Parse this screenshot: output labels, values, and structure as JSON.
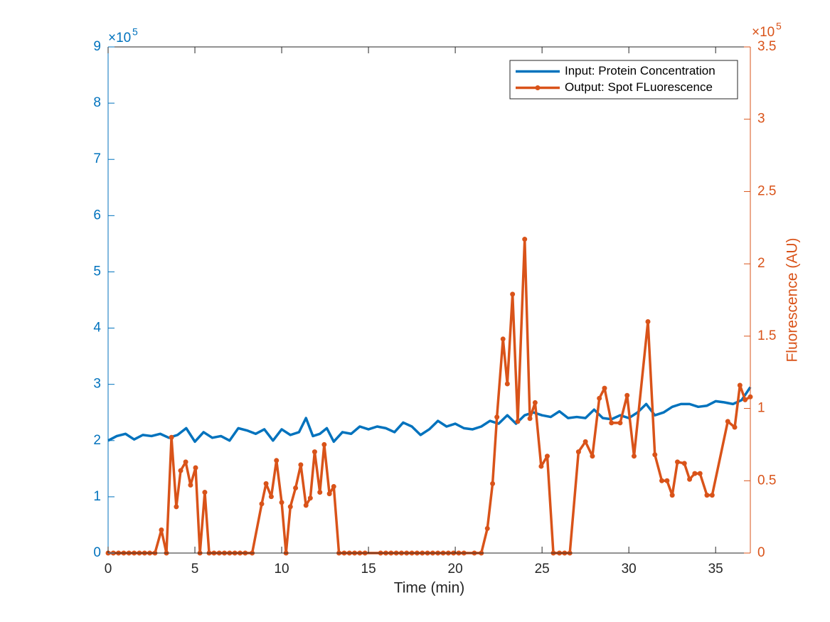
{
  "chart_data": {
    "type": "line",
    "xlabel": "Time (min)",
    "y2label": "Fluorescence (AU)",
    "y_multiplier": "×10",
    "y_exponent": "5",
    "y2_multiplier": "×10",
    "y2_exponent": "5",
    "xlim": [
      0,
      37
    ],
    "xticks": [
      0,
      5,
      10,
      15,
      20,
      25,
      30,
      35
    ],
    "ylim": [
      0,
      9
    ],
    "yticks": [
      0,
      1,
      2,
      3,
      4,
      5,
      6,
      7,
      8,
      9
    ],
    "y2lim": [
      0,
      3.5
    ],
    "y2ticks": [
      0,
      0.5,
      1,
      1.5,
      2,
      2.5,
      3,
      3.5
    ],
    "legend": "upper right",
    "series": [
      {
        "name": "Input: Protein Concentration",
        "color": "#0072bd",
        "marker": false,
        "x": [
          0,
          0.5,
          1,
          1.5,
          2,
          2.5,
          3,
          3.5,
          4,
          4.5,
          5,
          5.5,
          6,
          6.5,
          7,
          7.5,
          8,
          8.5,
          9,
          9.5,
          10,
          10.5,
          11,
          11.4,
          11.8,
          12.2,
          12.6,
          13,
          13.5,
          14,
          14.5,
          15,
          15.5,
          16,
          16.5,
          17,
          17.5,
          18,
          18.5,
          19,
          19.5,
          20,
          20.5,
          21,
          21.5,
          22,
          22.5,
          23,
          23.5,
          24,
          24.5,
          25,
          25.5,
          26,
          26.5,
          27,
          27.5,
          28,
          28.5,
          29,
          29.5,
          30,
          30.5,
          31,
          31.5,
          32,
          32.5,
          33,
          33.5,
          34,
          34.5,
          35,
          35.5,
          36,
          36.5,
          37
        ],
        "values": [
          2.0,
          2.08,
          2.12,
          2.02,
          2.1,
          2.08,
          2.12,
          2.05,
          2.1,
          2.22,
          1.98,
          2.15,
          2.05,
          2.08,
          2.0,
          2.22,
          2.18,
          2.12,
          2.2,
          2.0,
          2.2,
          2.1,
          2.15,
          2.4,
          2.08,
          2.12,
          2.22,
          1.98,
          2.15,
          2.12,
          2.25,
          2.2,
          2.25,
          2.22,
          2.15,
          2.32,
          2.25,
          2.1,
          2.2,
          2.35,
          2.25,
          2.3,
          2.22,
          2.2,
          2.25,
          2.35,
          2.3,
          2.45,
          2.3,
          2.45,
          2.5,
          2.45,
          2.42,
          2.52,
          2.4,
          2.42,
          2.4,
          2.55,
          2.4,
          2.38,
          2.45,
          2.4,
          2.5,
          2.65,
          2.45,
          2.5,
          2.6,
          2.65,
          2.65,
          2.6,
          2.62,
          2.7,
          2.68,
          2.65,
          2.72,
          2.95
        ]
      },
      {
        "name": "Output: Spot FLuorescence",
        "color": "#d95319",
        "axis": "y2",
        "marker": true,
        "x": [
          0,
          0.3,
          0.6,
          0.9,
          1.2,
          1.5,
          1.8,
          2.1,
          2.4,
          2.7,
          3.07,
          3.36,
          3.65,
          3.93,
          4.18,
          4.47,
          4.75,
          5.04,
          5.29,
          5.57,
          5.82,
          6.1,
          6.4,
          6.7,
          7.0,
          7.3,
          7.6,
          7.9,
          8.3,
          8.85,
          9.1,
          9.4,
          9.7,
          10.0,
          10.25,
          10.5,
          10.8,
          11.1,
          11.4,
          11.65,
          11.9,
          12.2,
          12.45,
          12.75,
          13.0,
          13.3,
          13.6,
          13.9,
          14.2,
          14.5,
          14.8,
          15.7,
          16.0,
          16.3,
          16.6,
          16.9,
          17.2,
          17.5,
          17.8,
          18.1,
          18.4,
          18.7,
          19.0,
          19.3,
          19.6,
          19.9,
          20.2,
          20.5,
          21.1,
          21.5,
          21.85,
          22.15,
          22.4,
          22.75,
          23.0,
          23.3,
          23.6,
          24.0,
          24.3,
          24.6,
          24.95,
          25.3,
          25.65,
          26.0,
          26.3,
          26.6,
          27.1,
          27.5,
          27.9,
          28.3,
          28.6,
          29.0,
          29.5,
          29.9,
          30.3,
          31.1,
          31.5,
          31.9,
          32.2,
          32.5,
          32.8,
          33.2,
          33.5,
          33.8,
          34.1,
          34.5,
          34.8,
          35.7,
          36.1,
          36.4,
          36.7,
          37.0
        ],
        "values": [
          0,
          0,
          0,
          0,
          0,
          0,
          0,
          0,
          0,
          0,
          0.16,
          0,
          0.8,
          0.32,
          0.57,
          0.63,
          0.47,
          0.59,
          0,
          0.42,
          0,
          0,
          0,
          0,
          0,
          0,
          0,
          0,
          0,
          0.34,
          0.48,
          0.39,
          0.64,
          0.35,
          0,
          0.32,
          0.45,
          0.61,
          0.33,
          0.38,
          0.7,
          0.42,
          0.75,
          0.41,
          0.46,
          0,
          0,
          0,
          0,
          0,
          0,
          0,
          0,
          0,
          0,
          0,
          0,
          0,
          0,
          0,
          0,
          0,
          0,
          0,
          0,
          0,
          0,
          0,
          0,
          0,
          0.17,
          0.48,
          0.94,
          1.48,
          1.17,
          1.79,
          0.91,
          2.17,
          0.93,
          1.04,
          0.6,
          0.67,
          0,
          0,
          0,
          0,
          0.7,
          0.77,
          0.67,
          1.07,
          1.14,
          0.9,
          0.9,
          1.09,
          0.67,
          1.6,
          0.68,
          0.5,
          0.5,
          0.4,
          0.63,
          0.62,
          0.51,
          0.55,
          0.55,
          0.4,
          0.4,
          0.91,
          0.87,
          1.16,
          1.06,
          1.08
        ]
      }
    ]
  }
}
